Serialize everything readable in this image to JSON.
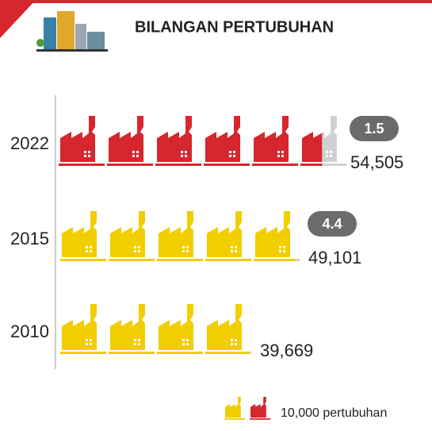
{
  "chart_data": {
    "type": "pictogram",
    "title": "BILANGAN PERTUBUHAN",
    "categories": [
      "2022",
      "2015",
      "2010"
    ],
    "values": [
      54505,
      49101,
      39669
    ],
    "value_labels": [
      "54,505",
      "49,101",
      "39,669"
    ],
    "colors": [
      "#d6262e",
      "#f2cd00",
      "#f2cd00"
    ],
    "growth": [
      1.5,
      4.4,
      null
    ],
    "unit": {
      "value": 10000,
      "label": "10,000 pertubuhan"
    }
  }
}
